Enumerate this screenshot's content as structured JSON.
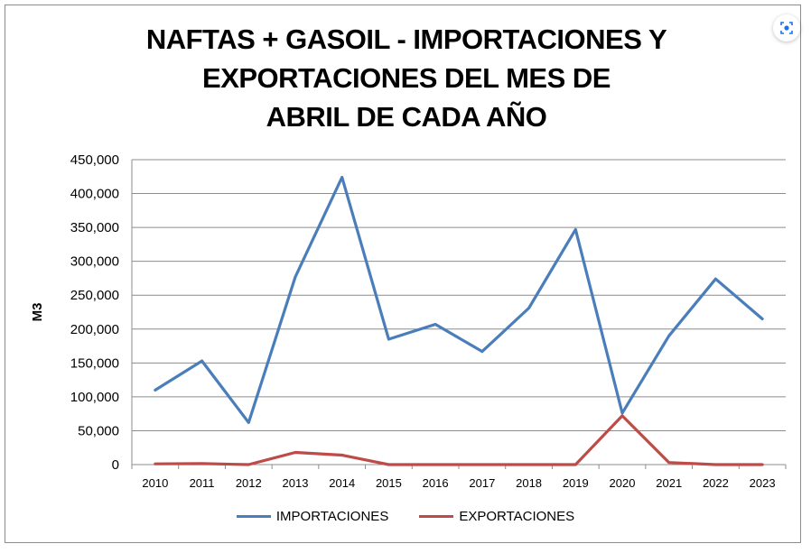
{
  "chart_data": {
    "type": "line",
    "title_lines": [
      "NAFTAS + GASOIL - IMPORTACIONES Y",
      "EXPORTACIONES DEL MES DE",
      "ABRIL DE CADA AÑO"
    ],
    "ylabel": "M3",
    "xlabel": "",
    "ylim": [
      0,
      450000
    ],
    "yticks": [
      "0",
      "50,000",
      "100,000",
      "150,000",
      "200,000",
      "250,000",
      "300,000",
      "350,000",
      "400,000",
      "450,000"
    ],
    "categories": [
      "2010",
      "2011",
      "2012",
      "2013",
      "2014",
      "2015",
      "2016",
      "2017",
      "2018",
      "2019",
      "2020",
      "2021",
      "2022",
      "2023"
    ],
    "grid": true,
    "legend_position": "bottom",
    "series": [
      {
        "name": "IMPORTACIONES",
        "color": "#4a7ebb",
        "values": [
          110000,
          153000,
          62000,
          277000,
          424000,
          185000,
          207000,
          167000,
          231000,
          347000,
          76000,
          190000,
          274000,
          215000
        ]
      },
      {
        "name": "EXPORTACIONES",
        "color": "#be4b48",
        "values": [
          1000,
          1500,
          0,
          18000,
          14000,
          0,
          0,
          0,
          0,
          0,
          72000,
          3000,
          0,
          0
        ]
      }
    ]
  },
  "ui": {
    "lens_icon": "lens-icon"
  }
}
